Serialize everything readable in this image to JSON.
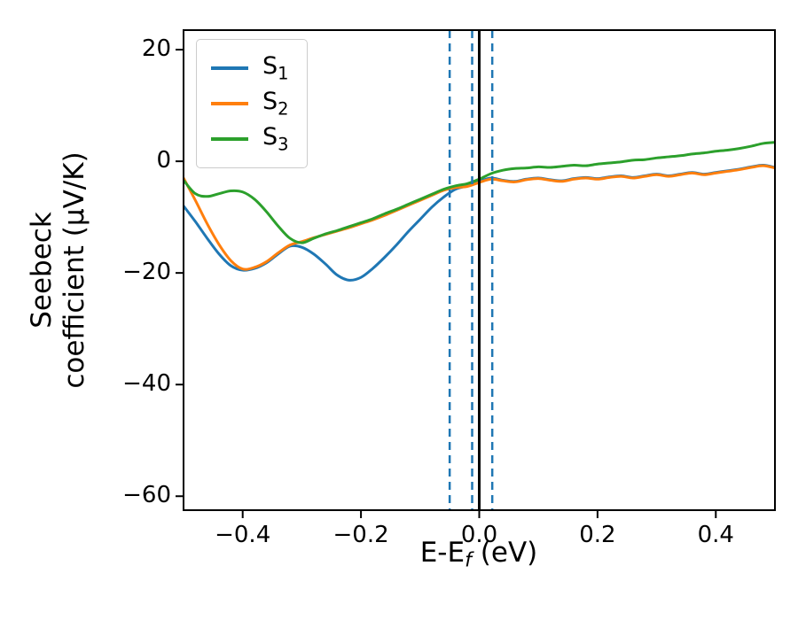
{
  "figure": {
    "background": "#ffffff",
    "xlabel": {
      "before": "E-E",
      "sub": "f",
      "after": " (eV)"
    },
    "ylabel": {
      "line1": "Seebeck",
      "line2": "coefficient  (μV/K)"
    }
  },
  "chart_data": {
    "type": "line",
    "title": "",
    "xlabel": "E-E_f (eV)",
    "ylabel": "Seebeck coefficient (μV/K)",
    "xlim": [
      -0.5,
      0.5
    ],
    "ylim": [
      -62.5,
      23.5
    ],
    "xticks": [
      -0.4,
      -0.2,
      0.0,
      0.2,
      0.4
    ],
    "yticks": [
      20,
      0,
      -20,
      -40,
      -60
    ],
    "grid": false,
    "legend_position": "upper left",
    "x": [
      -0.5,
      -0.48,
      -0.46,
      -0.44,
      -0.42,
      -0.4,
      -0.38,
      -0.36,
      -0.34,
      -0.32,
      -0.3,
      -0.28,
      -0.26,
      -0.24,
      -0.22,
      -0.2,
      -0.18,
      -0.16,
      -0.14,
      -0.12,
      -0.1,
      -0.08,
      -0.06,
      -0.04,
      -0.02,
      0,
      0.02,
      0.04,
      0.06,
      0.08,
      0.1,
      0.12,
      0.14,
      0.16,
      0.18,
      0.2,
      0.22,
      0.24,
      0.26,
      0.28,
      0.3,
      0.32,
      0.34,
      0.36,
      0.38,
      0.4,
      0.42,
      0.44,
      0.46,
      0.48,
      0.5
    ],
    "series": [
      {
        "name": "S1",
        "label": {
          "base": "S",
          "sub": "1"
        },
        "color": "#1f77b4",
        "values": [
          -8.0,
          -10.8,
          -13.8,
          -16.6,
          -18.7,
          -19.5,
          -19.2,
          -18.2,
          -16.6,
          -15.2,
          -15.4,
          -16.6,
          -18.4,
          -20.4,
          -21.3,
          -20.8,
          -19.2,
          -17.2,
          -15.0,
          -12.6,
          -10.4,
          -8.2,
          -6.4,
          -5.0,
          -4.4,
          -3.6,
          -3.0,
          -3.4,
          -3.6,
          -3.2,
          -3.0,
          -3.3,
          -3.5,
          -3.1,
          -2.9,
          -3.1,
          -2.8,
          -2.6,
          -2.9,
          -2.6,
          -2.3,
          -2.6,
          -2.3,
          -2.0,
          -2.3,
          -2.0,
          -1.7,
          -1.4,
          -1.0,
          -0.7,
          -1.1
        ]
      },
      {
        "name": "S2",
        "label": {
          "base": "S",
          "sub": "2"
        },
        "color": "#ff7f0e",
        "values": [
          -3.0,
          -7.0,
          -11.2,
          -14.9,
          -17.8,
          -19.3,
          -19.0,
          -18.0,
          -16.4,
          -15.0,
          -14.4,
          -13.7,
          -13.1,
          -12.5,
          -11.9,
          -11.2,
          -10.5,
          -9.7,
          -8.8,
          -7.9,
          -7.0,
          -6.1,
          -5.2,
          -4.7,
          -4.5,
          -3.8,
          -3.2,
          -3.5,
          -3.7,
          -3.3,
          -3.1,
          -3.4,
          -3.6,
          -3.2,
          -3.0,
          -3.2,
          -2.9,
          -2.7,
          -3.0,
          -2.7,
          -2.4,
          -2.7,
          -2.4,
          -2.1,
          -2.4,
          -2.1,
          -1.8,
          -1.5,
          -1.1,
          -0.8,
          -1.2
        ]
      },
      {
        "name": "S3",
        "label": {
          "base": "S",
          "sub": "3"
        },
        "color": "#2ca02c",
        "values": [
          -3.4,
          -5.8,
          -6.3,
          -5.8,
          -5.3,
          -5.5,
          -6.8,
          -9.0,
          -11.6,
          -13.8,
          -14.6,
          -13.8,
          -13.0,
          -12.4,
          -11.7,
          -11.0,
          -10.3,
          -9.4,
          -8.6,
          -7.7,
          -6.8,
          -5.9,
          -5.0,
          -4.4,
          -4.0,
          -3.2,
          -2.2,
          -1.6,
          -1.3,
          -1.2,
          -1.0,
          -1.1,
          -0.9,
          -0.7,
          -0.8,
          -0.5,
          -0.3,
          -0.1,
          0.2,
          0.3,
          0.6,
          0.8,
          1.0,
          1.3,
          1.5,
          1.8,
          2.0,
          2.3,
          2.7,
          3.2,
          3.4
        ]
      }
    ],
    "vlines": [
      {
        "x": 0.0,
        "color": "#000000",
        "style": "solid",
        "width": 3
      },
      {
        "x": -0.05,
        "color": "#1f77b4",
        "style": "dashed",
        "width": 2.5
      },
      {
        "x": -0.012,
        "color": "#1f77b4",
        "style": "dashed",
        "width": 2.5
      },
      {
        "x": 0.022,
        "color": "#1f77b4",
        "style": "dashed",
        "width": 2.5
      }
    ]
  }
}
